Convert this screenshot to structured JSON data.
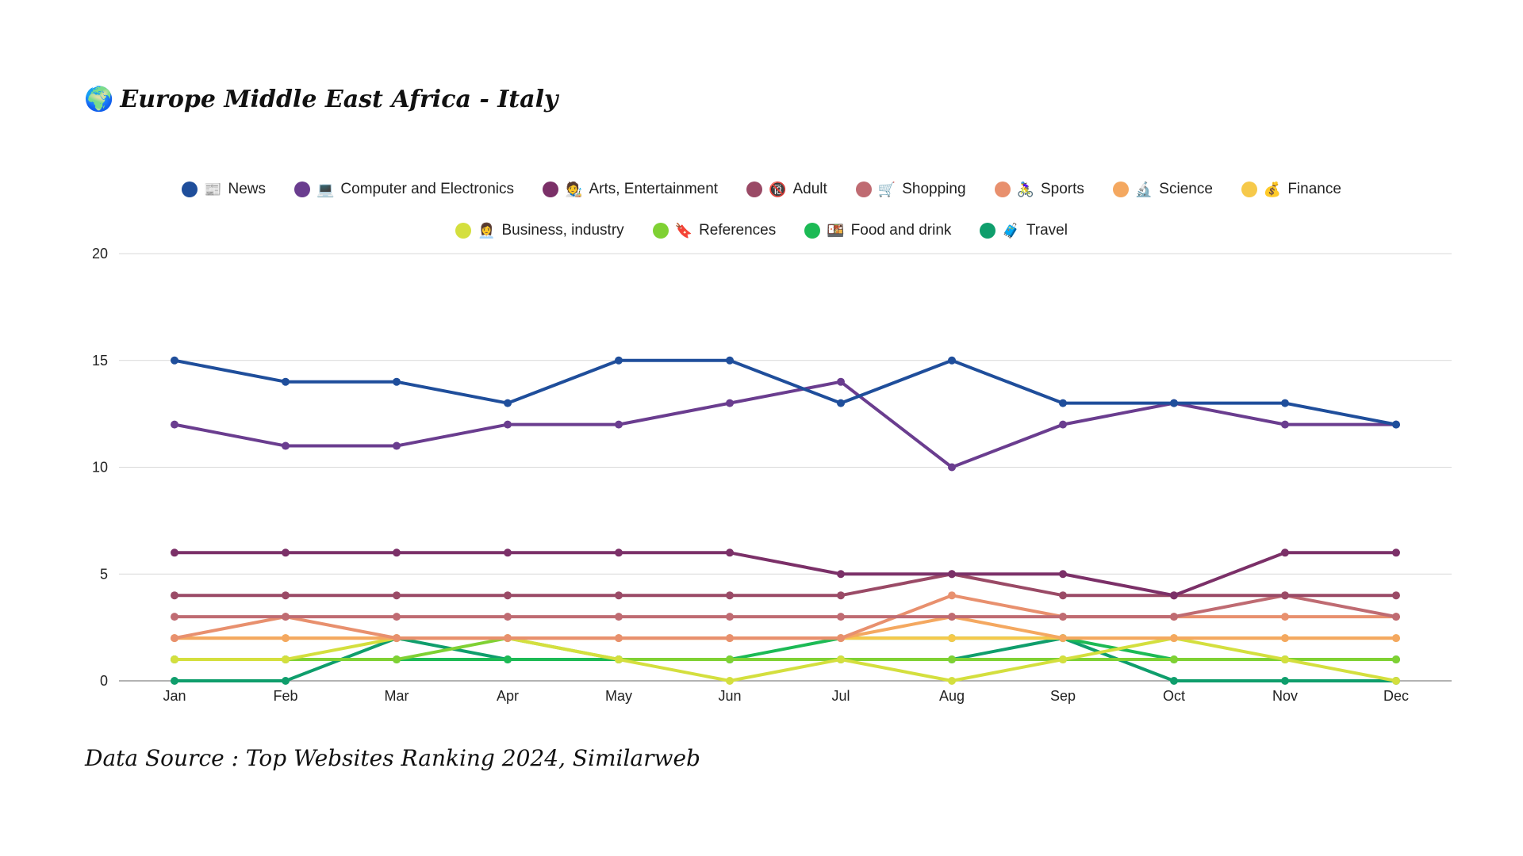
{
  "header": {
    "title": "Europe Middle East Africa - Italy",
    "icon": "globe-icon",
    "icon_glyph": "🌍"
  },
  "footer": {
    "source": "Data Source : Top Websites Ranking 2024, Similarweb"
  },
  "chart_data": {
    "type": "line",
    "title": "Europe Middle East Africa - Italy",
    "xlabel": "",
    "ylabel": "",
    "ylim": [
      0,
      20
    ],
    "yticks": [
      0,
      5,
      10,
      15,
      20
    ],
    "grid": true,
    "legend_position": "top",
    "categories": [
      "Jan",
      "Feb",
      "Mar",
      "Apr",
      "May",
      "Jun",
      "Jul",
      "Aug",
      "Sep",
      "Oct",
      "Nov",
      "Dec"
    ],
    "series": [
      {
        "name": "News",
        "icon": "newspaper-icon",
        "glyph": "📰",
        "color": "#1f4e9b",
        "values": [
          15,
          14,
          14,
          13,
          15,
          15,
          13,
          15,
          13,
          13,
          13,
          12
        ]
      },
      {
        "name": "Computer and Electronics",
        "icon": "laptop-icon",
        "glyph": "💻",
        "color": "#6a3d8f",
        "values": [
          12,
          11,
          11,
          12,
          12,
          13,
          14,
          10,
          12,
          13,
          12,
          12
        ]
      },
      {
        "name": "Arts, Entertainment",
        "icon": "artist-icon",
        "glyph": "🧑‍🎨",
        "color": "#7b3068",
        "values": [
          6,
          6,
          6,
          6,
          6,
          6,
          5,
          5,
          5,
          4,
          6,
          6
        ]
      },
      {
        "name": "Adult",
        "icon": "adult-18-icon",
        "glyph": "🔞",
        "color": "#9a4a66",
        "values": [
          4,
          4,
          4,
          4,
          4,
          4,
          4,
          5,
          4,
          4,
          4,
          4
        ]
      },
      {
        "name": "Shopping",
        "icon": "cart-icon",
        "glyph": "🛒",
        "color": "#bf6b72",
        "values": [
          3,
          3,
          3,
          3,
          3,
          3,
          3,
          3,
          3,
          3,
          4,
          3
        ]
      },
      {
        "name": "Sports",
        "icon": "sports-icon",
        "glyph": "🚴‍♀️",
        "color": "#e8906e",
        "values": [
          2,
          3,
          2,
          2,
          2,
          2,
          2,
          4,
          3,
          3,
          3,
          3
        ]
      },
      {
        "name": "Science",
        "icon": "microscope-icon",
        "glyph": "🔬",
        "color": "#f4a860",
        "values": [
          2,
          2,
          2,
          2,
          2,
          2,
          2,
          3,
          2,
          2,
          2,
          2
        ]
      },
      {
        "name": "Finance",
        "icon": "money-bag-icon",
        "glyph": "💰",
        "color": "#f6c94a",
        "values": [
          2,
          2,
          2,
          2,
          2,
          2,
          2,
          2,
          2,
          2,
          2,
          2
        ]
      },
      {
        "name": "Business, industry",
        "icon": "business-icon",
        "glyph": "👩‍💼",
        "color": "#d4df3e",
        "values": [
          1,
          1,
          2,
          2,
          1,
          0,
          1,
          0,
          1,
          2,
          1,
          0
        ]
      },
      {
        "name": "References",
        "icon": "bookmark-icon",
        "glyph": "🔖",
        "color": "#7fd133",
        "values": [
          1,
          1,
          1,
          2,
          1,
          1,
          1,
          1,
          1,
          1,
          1,
          1
        ]
      },
      {
        "name": "Food and drink",
        "icon": "food-box-icon",
        "glyph": "🍱",
        "color": "#1cba55",
        "values": [
          1,
          1,
          1,
          1,
          1,
          1,
          2,
          2,
          2,
          1,
          1,
          1
        ]
      },
      {
        "name": "Travel",
        "icon": "luggage-icon",
        "glyph": "🧳",
        "color": "#0f9e6c",
        "values": [
          0,
          0,
          2,
          1,
          1,
          1,
          1,
          1,
          2,
          0,
          0,
          0
        ]
      }
    ]
  }
}
